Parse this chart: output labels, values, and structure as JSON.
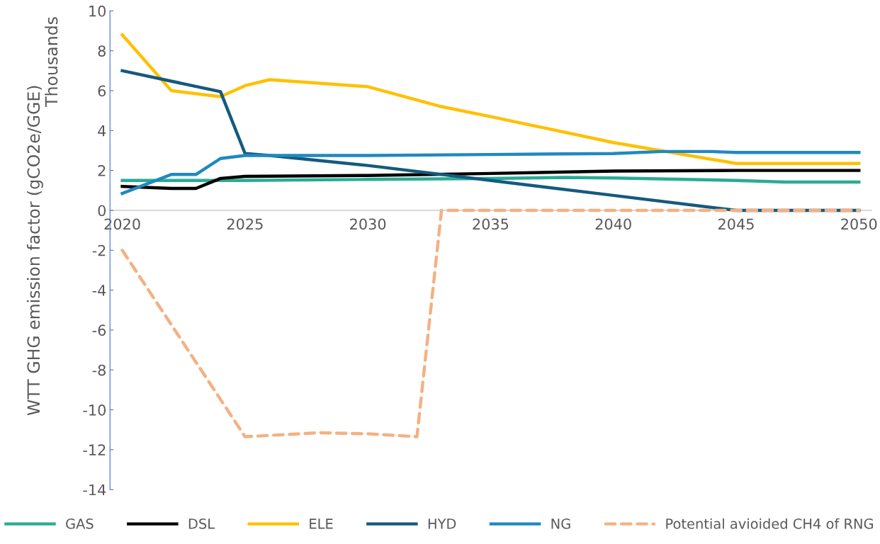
{
  "chart_data": {
    "type": "line",
    "ylabel": "WTT GHG emission factor (gCO2e/GGE)",
    "annotations": [
      "Thousands"
    ],
    "xlim": [
      2019.5,
      2050.5
    ],
    "xticks": [
      2020,
      2025,
      2030,
      2035,
      2040,
      2045,
      2050
    ],
    "ylim": [
      -14,
      10
    ],
    "yticks": [
      -14,
      -12,
      -10,
      -8,
      -6,
      -4,
      -2,
      0,
      2,
      4,
      6,
      8,
      10
    ],
    "grid": false,
    "legend": "bottom",
    "marker": "none",
    "series": [
      {
        "name": "GAS",
        "color": "#2aab94",
        "x": [
          2020,
          2025,
          2030,
          2035,
          2038,
          2040,
          2045,
          2047,
          2050
        ],
        "values": [
          1.5,
          1.5,
          1.55,
          1.6,
          1.65,
          1.62,
          1.5,
          1.42,
          1.42
        ]
      },
      {
        "name": "DSL",
        "color": "#000000",
        "x": [
          2020,
          2022,
          2023,
          2024,
          2025,
          2030,
          2035,
          2040,
          2045,
          2050
        ],
        "values": [
          1.2,
          1.1,
          1.1,
          1.6,
          1.7,
          1.75,
          1.85,
          1.97,
          2.0,
          2.0
        ]
      },
      {
        "name": "ELE",
        "color": "#ffc000",
        "x": [
          2020,
          2022,
          2024,
          2025,
          2026,
          2030,
          2033,
          2035,
          2040,
          2045,
          2050
        ],
        "values": [
          8.8,
          6.0,
          5.7,
          6.25,
          6.55,
          6.2,
          5.2,
          4.7,
          3.4,
          2.35,
          2.35
        ]
      },
      {
        "name": "HYD",
        "color": "#145a7f",
        "x": [
          2020,
          2024,
          2025,
          2026,
          2030,
          2035,
          2040,
          2045,
          2050
        ],
        "values": [
          7.0,
          5.95,
          2.85,
          2.75,
          2.25,
          1.5,
          0.75,
          0,
          0
        ]
      },
      {
        "name": "NG",
        "color": "#1f89c0",
        "x": [
          2020,
          2022,
          2023,
          2024,
          2025,
          2030,
          2035,
          2040,
          2042,
          2044,
          2045,
          2050
        ],
        "values": [
          0.85,
          1.8,
          1.8,
          2.6,
          2.75,
          2.75,
          2.8,
          2.85,
          2.95,
          2.95,
          2.9,
          2.9
        ]
      },
      {
        "name": "Potential avioided CH4 of RNG",
        "color": "#f4b183",
        "line_style": "dashed",
        "x": [
          2020,
          2025,
          2028,
          2030,
          2032,
          2033,
          2040,
          2045,
          2050
        ],
        "values": [
          -2.0,
          -11.35,
          -11.15,
          -11.2,
          -11.35,
          0,
          0,
          0,
          0
        ]
      }
    ]
  }
}
